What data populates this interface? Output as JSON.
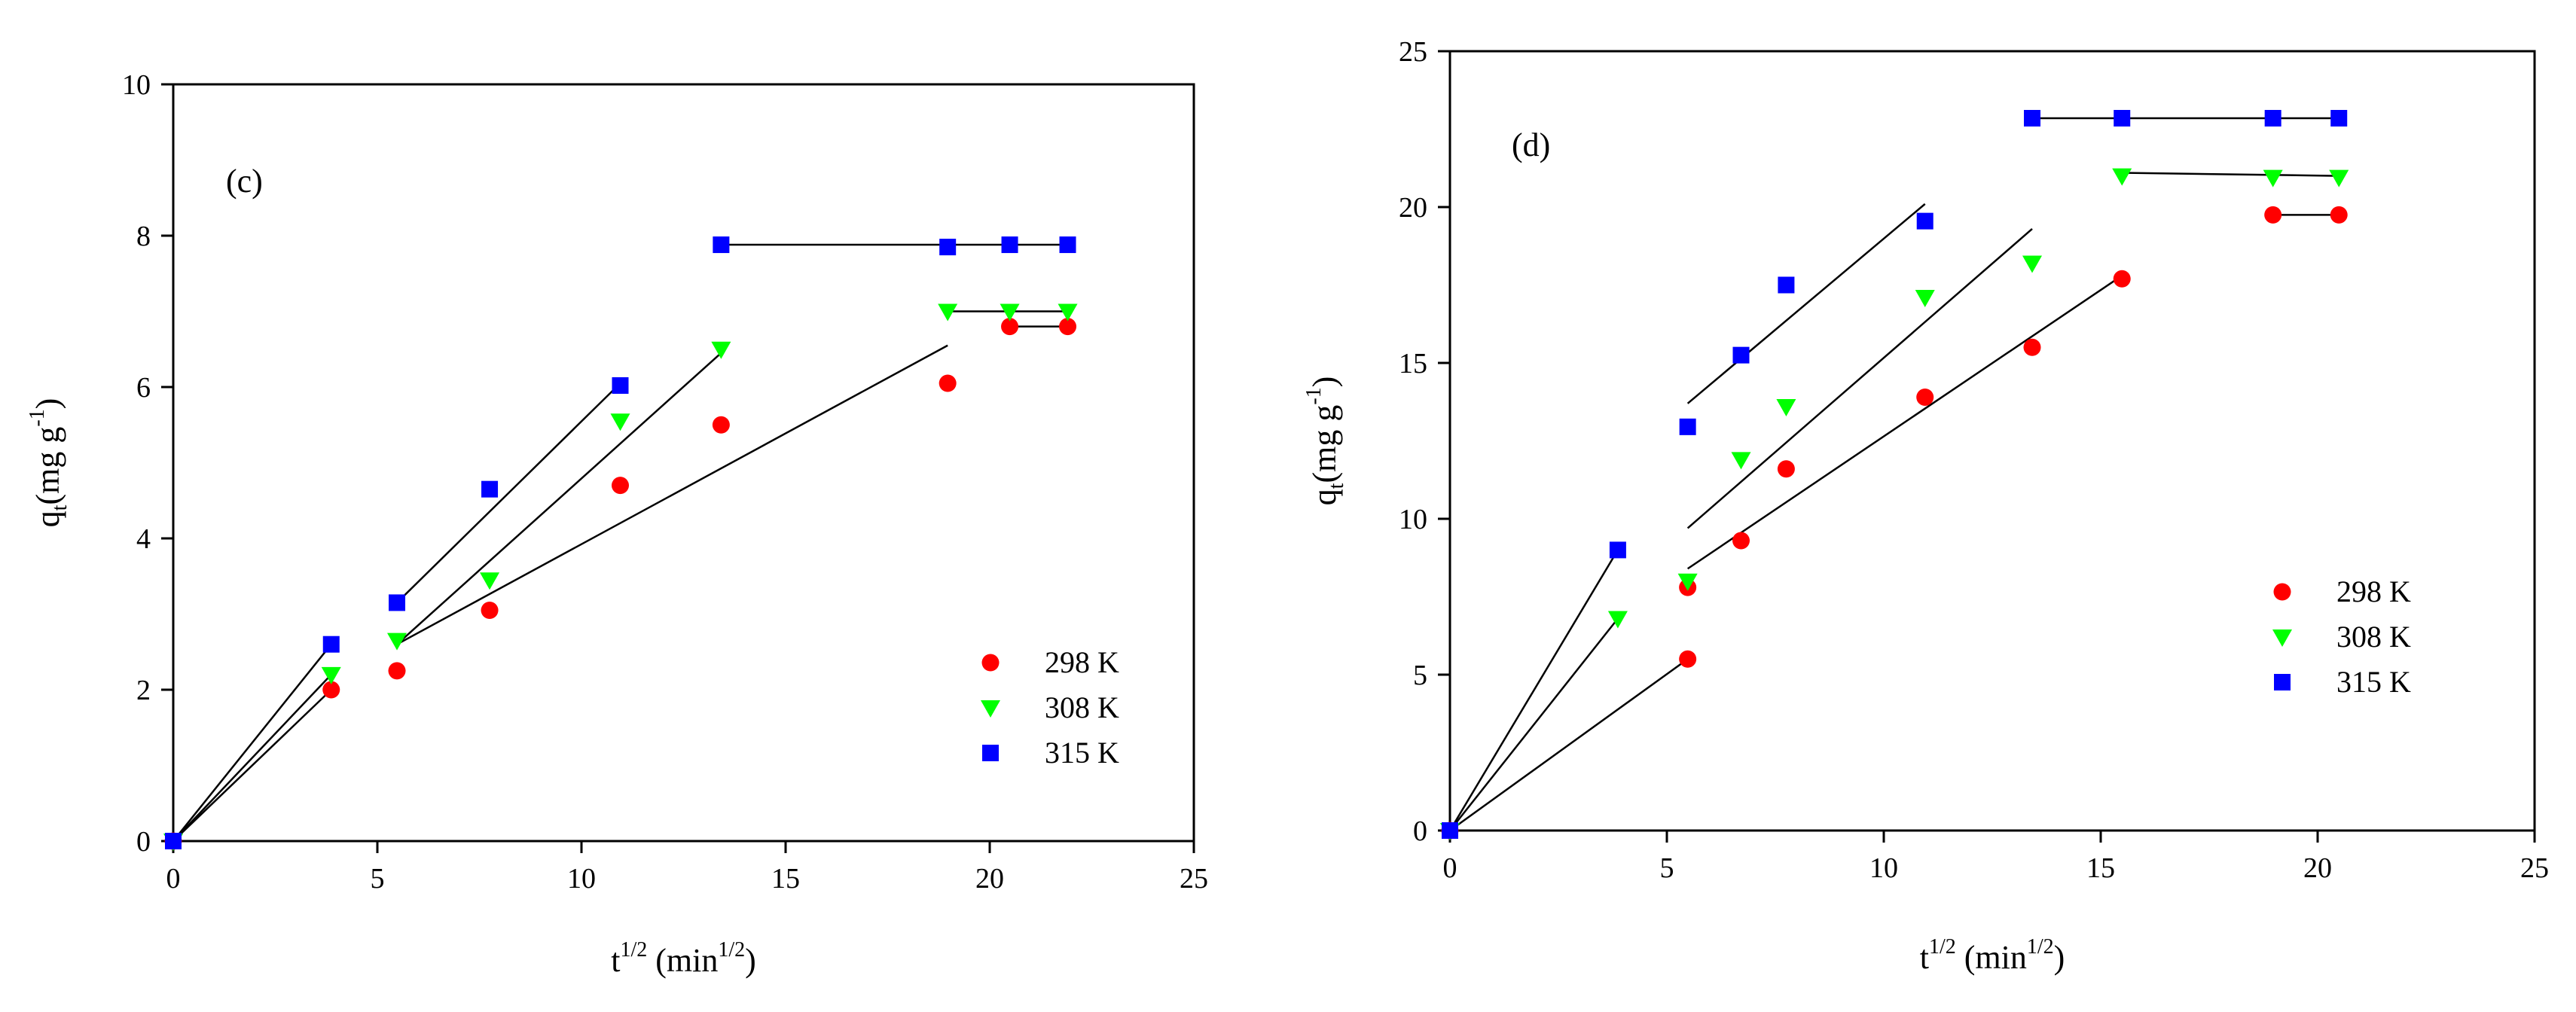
{
  "colors": {
    "298 K": "#ff0000",
    "308 K": "#00ff00",
    "315 K": "#0000ff",
    "axis": "#000000",
    "fit_line": "#000000"
  },
  "chart_data": [
    {
      "type": "scatter",
      "panel_label": "(c)",
      "xlabel": "t",
      "xlabel_sup": "1/2",
      "xlabel_unit": " (min",
      "xlabel_unit_sup": "1/2",
      "xlabel_close": ")",
      "ylabel": "q",
      "ylabel_sub": "t",
      "ylabel_unit": "(mg g",
      "ylabel_unit_sup": "-1",
      "ylabel_close": ")",
      "xlim": [
        0,
        25
      ],
      "ylim": [
        0,
        10
      ],
      "xticks": [
        0,
        5,
        10,
        15,
        20,
        25
      ],
      "yticks": [
        0,
        2,
        4,
        6,
        8,
        10
      ],
      "legend_position": "bottom-right",
      "series": [
        {
          "name": "298 K",
          "marker": "circle",
          "x": [
            0,
            3.87,
            5.48,
            7.75,
            10.95,
            13.42,
            18.97,
            20.49,
            21.91
          ],
          "y": [
            0,
            2.0,
            2.25,
            3.05,
            4.7,
            5.5,
            6.05,
            6.8,
            6.8
          ]
        },
        {
          "name": "308 K",
          "marker": "triangle-down",
          "x": [
            0,
            3.87,
            5.48,
            7.75,
            10.95,
            13.42,
            18.97,
            20.49,
            21.91
          ],
          "y": [
            0,
            2.2,
            2.65,
            3.45,
            5.55,
            6.5,
            7.0,
            7.0,
            7.0
          ]
        },
        {
          "name": "315 K",
          "marker": "square",
          "x": [
            0,
            3.87,
            5.48,
            7.75,
            10.95,
            13.42,
            18.97,
            20.49,
            21.91
          ],
          "y": [
            0,
            2.6,
            3.15,
            4.65,
            6.02,
            7.88,
            7.85,
            7.88,
            7.88
          ]
        }
      ],
      "fit_lines": [
        {
          "series": "298 K",
          "x": [
            0,
            3.87
          ],
          "y": [
            0,
            2.0
          ]
        },
        {
          "series": "308 K",
          "x": [
            0,
            3.87
          ],
          "y": [
            0,
            2.2
          ]
        },
        {
          "series": "315 K",
          "x": [
            0,
            3.87
          ],
          "y": [
            0,
            2.6
          ]
        },
        {
          "series": "298 K",
          "x": [
            5.48,
            18.97
          ],
          "y": [
            2.6,
            6.55
          ]
        },
        {
          "series": "308 K",
          "x": [
            5.48,
            13.42
          ],
          "y": [
            2.6,
            6.45
          ]
        },
        {
          "series": "315 K",
          "x": [
            5.48,
            10.95
          ],
          "y": [
            3.15,
            6.05
          ]
        },
        {
          "series": "298 K",
          "x": [
            20.49,
            21.91
          ],
          "y": [
            6.8,
            6.8
          ]
        },
        {
          "series": "308 K",
          "x": [
            18.97,
            21.91
          ],
          "y": [
            7.0,
            7.0
          ]
        },
        {
          "series": "315 K",
          "x": [
            13.42,
            21.91
          ],
          "y": [
            7.88,
            7.88
          ]
        }
      ]
    },
    {
      "type": "scatter",
      "panel_label": "(d)",
      "xlabel": "t",
      "xlabel_sup": "1/2",
      "xlabel_unit": " (min",
      "xlabel_unit_sup": "1/2",
      "xlabel_close": ")",
      "ylabel": "q",
      "ylabel_sub": "t",
      "ylabel_unit": "(mg g",
      "ylabel_unit_sup": "-1",
      "ylabel_close": ")",
      "xlim": [
        0,
        25
      ],
      "ylim": [
        0,
        25
      ],
      "xticks": [
        0,
        5,
        10,
        15,
        20,
        25
      ],
      "yticks": [
        0,
        5,
        10,
        15,
        20,
        25
      ],
      "legend_position": "bottom-right",
      "series": [
        {
          "name": "298 K",
          "marker": "circle",
          "x": [
            0,
            5.48,
            5.48,
            6.71,
            7.75,
            10.95,
            13.42,
            15.49,
            18.97,
            20.49
          ],
          "y": [
            0,
            5.5,
            7.8,
            9.3,
            11.6,
            13.9,
            15.5,
            17.7,
            19.75,
            19.75
          ]
        },
        {
          "name": "308 K",
          "marker": "triangle-down",
          "x": [
            0,
            3.87,
            5.48,
            6.71,
            7.75,
            10.95,
            13.42,
            15.49,
            18.97,
            20.49
          ],
          "y": [
            0,
            6.8,
            8.0,
            11.9,
            13.6,
            17.1,
            18.2,
            21.0,
            20.95,
            20.95
          ]
        },
        {
          "name": "315 K",
          "marker": "square",
          "x": [
            0,
            3.87,
            5.48,
            6.71,
            7.75,
            10.95,
            13.42,
            15.49,
            18.97,
            20.49
          ],
          "y": [
            0,
            9.0,
            12.95,
            15.25,
            17.5,
            19.55,
            22.85,
            22.85,
            22.85,
            22.85
          ]
        }
      ],
      "fit_lines": [
        {
          "series": "298 K",
          "x": [
            0,
            5.48
          ],
          "y": [
            0,
            5.5
          ]
        },
        {
          "series": "308 K",
          "x": [
            0,
            3.87
          ],
          "y": [
            0,
            6.8
          ]
        },
        {
          "series": "315 K",
          "x": [
            0,
            3.87
          ],
          "y": [
            0,
            9.0
          ]
        },
        {
          "series": "298 K",
          "x": [
            5.48,
            15.49
          ],
          "y": [
            8.4,
            17.8
          ]
        },
        {
          "series": "308 K",
          "x": [
            5.48,
            13.42
          ],
          "y": [
            9.7,
            19.3
          ]
        },
        {
          "series": "315 K",
          "x": [
            5.48,
            10.95
          ],
          "y": [
            13.7,
            20.1
          ]
        },
        {
          "series": "298 K",
          "x": [
            18.97,
            20.49
          ],
          "y": [
            19.75,
            19.75
          ]
        },
        {
          "series": "308 K",
          "x": [
            15.49,
            20.49
          ],
          "y": [
            21.1,
            21.0
          ]
        },
        {
          "series": "315 K",
          "x": [
            13.42,
            20.49
          ],
          "y": [
            22.85,
            22.85
          ]
        }
      ]
    }
  ]
}
